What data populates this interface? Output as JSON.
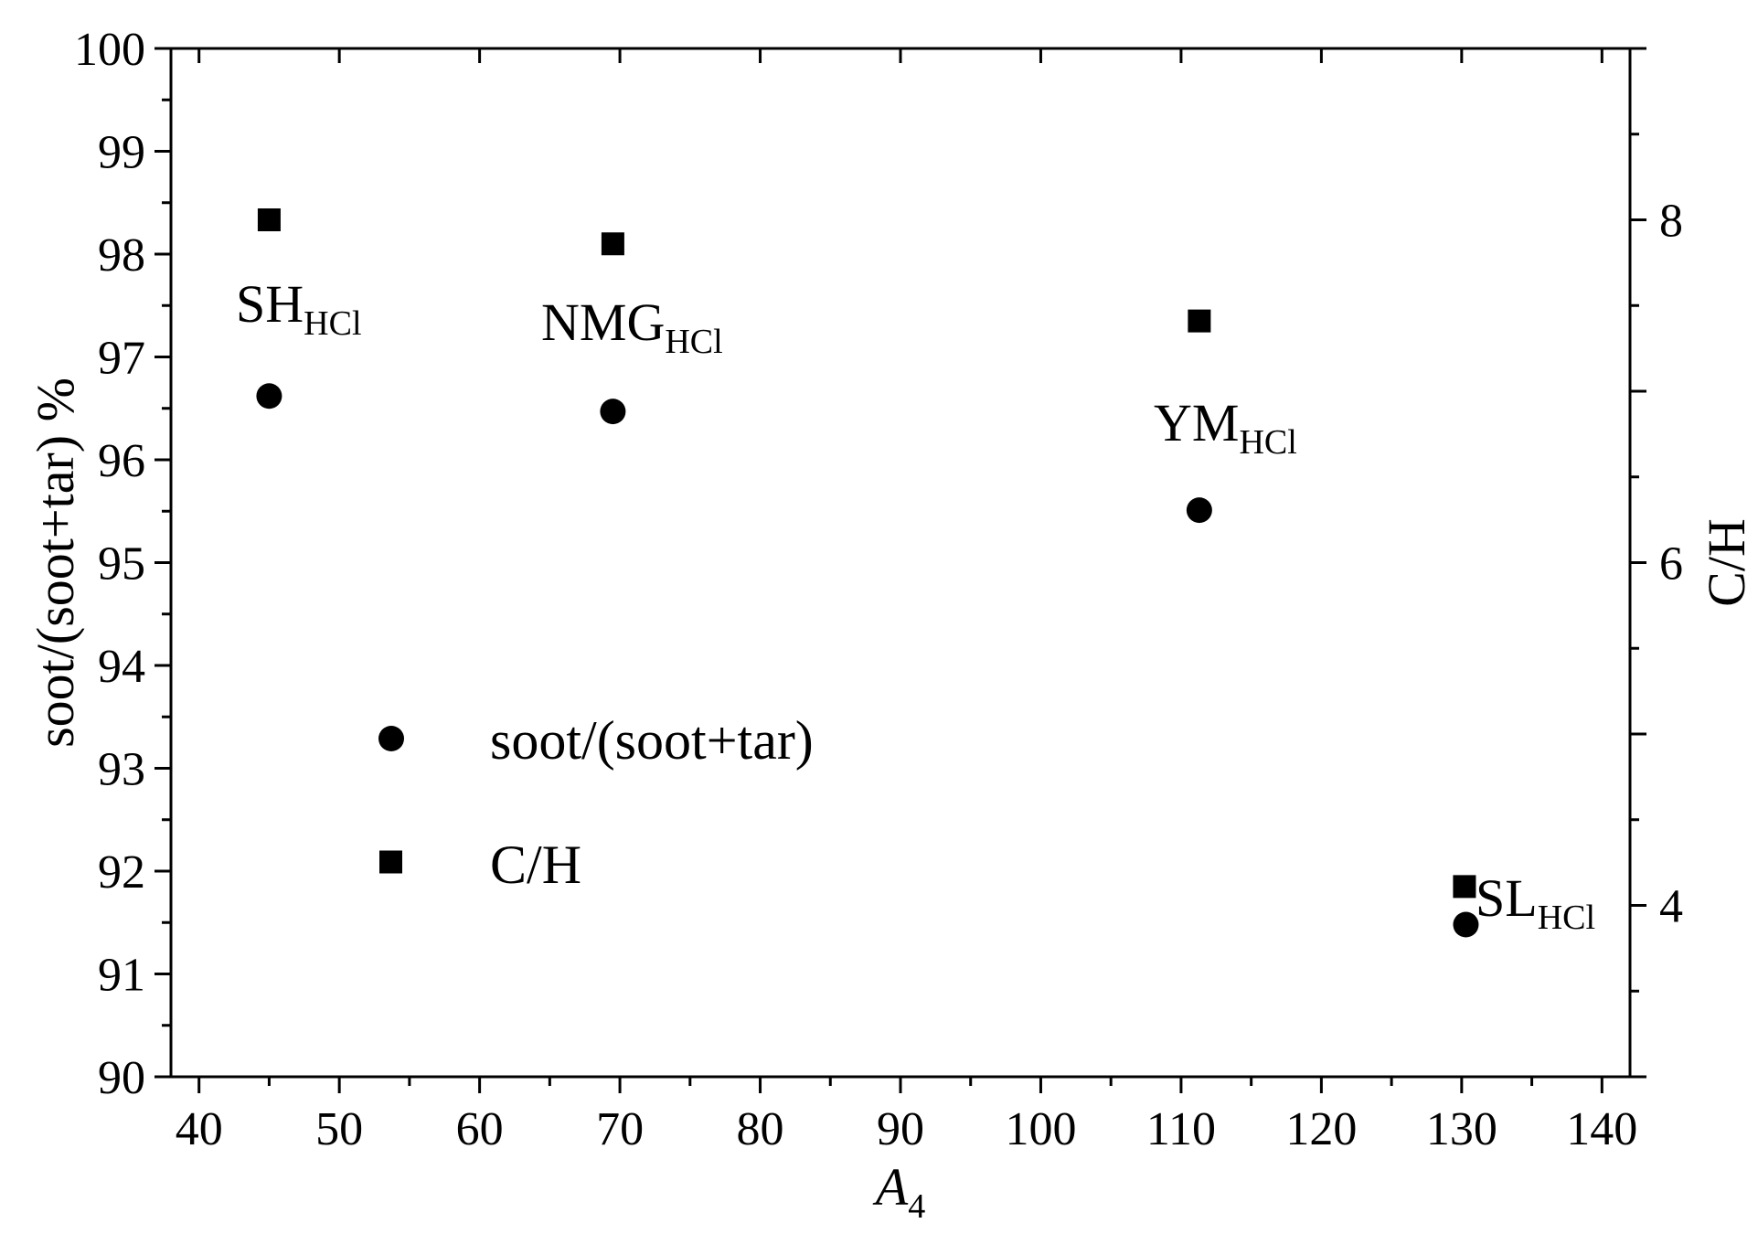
{
  "chart_data": {
    "type": "scatter",
    "xlabel": "A",
    "xlabel_sub": "4",
    "ylabel_left": "soot/(soot+tar) %",
    "ylabel_right": "C/H",
    "xlim": [
      38,
      142
    ],
    "ylim_left": [
      90,
      100
    ],
    "ylim_right": [
      3,
      9
    ],
    "x_ticks": [
      40,
      50,
      60,
      70,
      80,
      90,
      100,
      110,
      120,
      130,
      140
    ],
    "y_left_ticks": [
      90,
      91,
      92,
      93,
      94,
      95,
      96,
      97,
      98,
      99,
      100
    ],
    "y_right_ticks": [
      4,
      6,
      8
    ],
    "grid": false,
    "legend_position": "center-left",
    "series": [
      {
        "name": "soot/(soot+tar)",
        "marker": "circle",
        "axis": "left",
        "points": [
          {
            "x": 45.0,
            "y": 96.62
          },
          {
            "x": 69.5,
            "y": 96.47
          },
          {
            "x": 111.3,
            "y": 95.51
          },
          {
            "x": 130.3,
            "y": 91.48
          }
        ]
      },
      {
        "name": "C/H",
        "marker": "square",
        "axis": "right",
        "points": [
          {
            "x": 45.0,
            "y": 8.0
          },
          {
            "x": 69.5,
            "y": 7.86
          },
          {
            "x": 111.3,
            "y": 7.41
          },
          {
            "x": 130.2,
            "y": 4.11
          }
        ]
      }
    ],
    "annotations": [
      {
        "base": "SH",
        "sub": "HCl"
      },
      {
        "base": "NMG",
        "sub": "HCl"
      },
      {
        "base": "YM",
        "sub": "HCl"
      },
      {
        "base": "SL",
        "sub": "HCl"
      }
    ]
  }
}
